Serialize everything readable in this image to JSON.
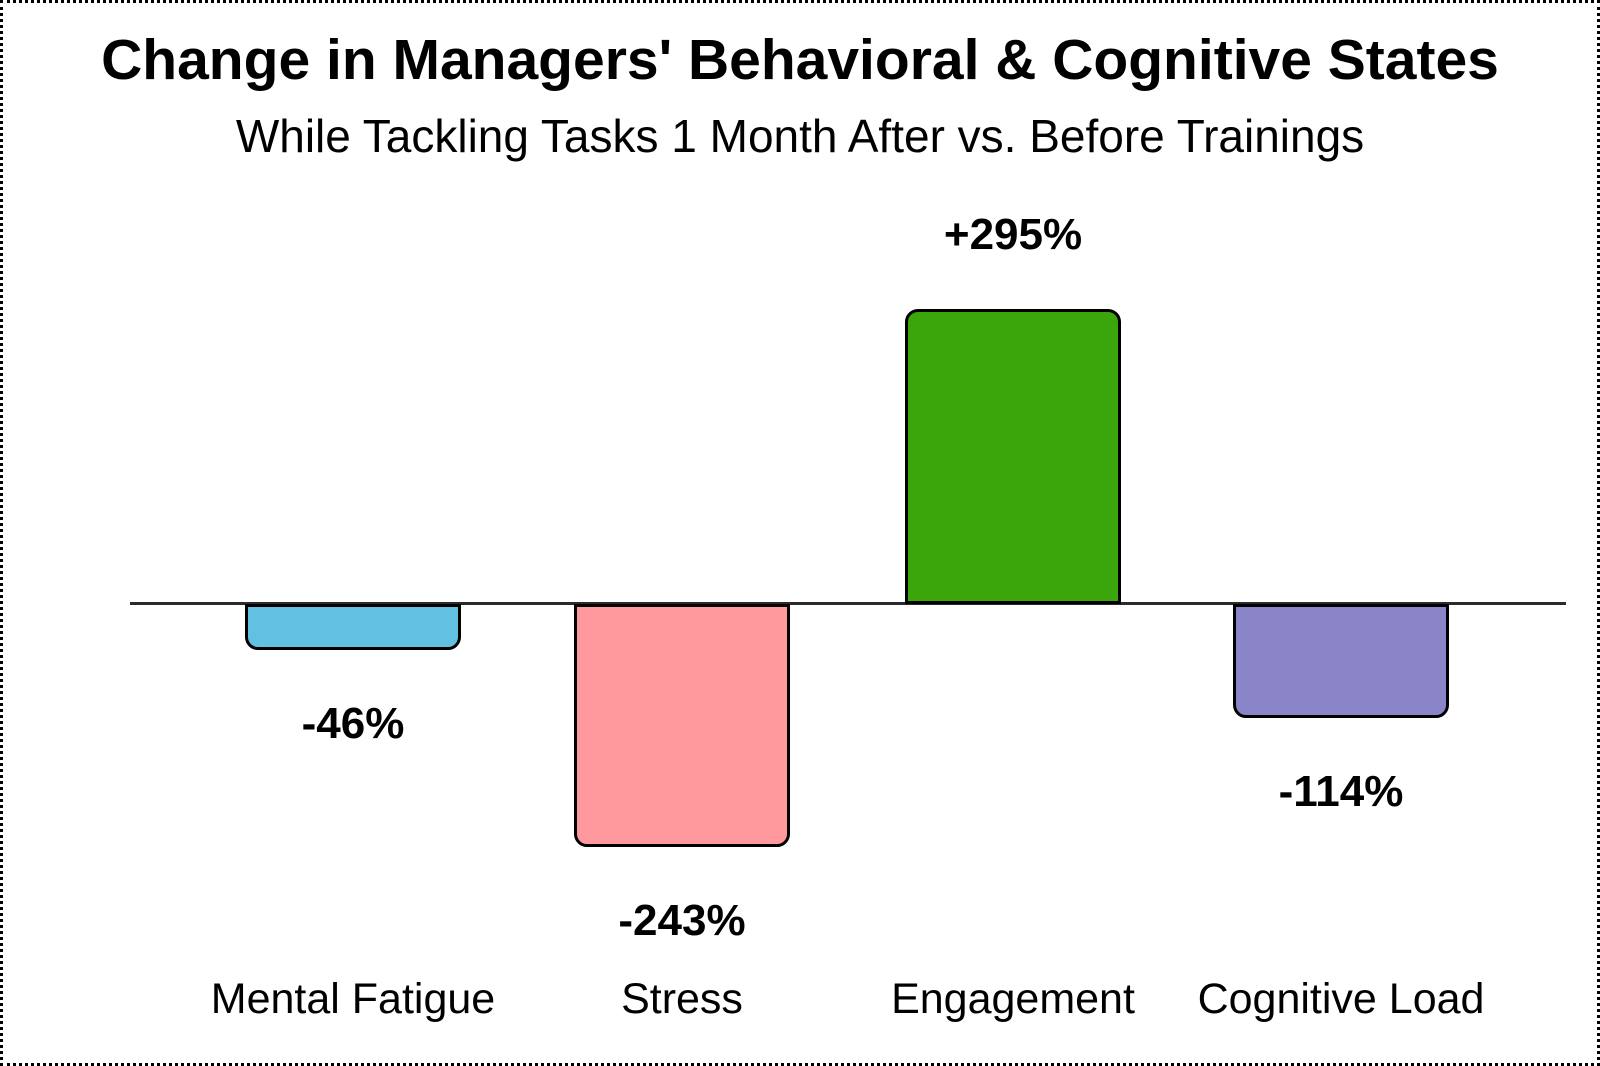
{
  "chart_data": {
    "type": "bar",
    "title": "Change in Managers' Behavioral & Cognitive States",
    "subtitle": "While Tackling Tasks 1 Month After vs. Before Trainings",
    "categories": [
      "Mental Fatigue",
      "Stress",
      "Engagement",
      "Cognitive Load"
    ],
    "values": [
      -46,
      -243,
      295,
      -114
    ],
    "value_labels": [
      "-46%",
      "-243%",
      "+295%",
      "-114%"
    ],
    "bar_colors": [
      "#62C0E0",
      "#FF999D",
      "#3AA60B",
      "#8A84C8"
    ],
    "bar_border_color": "#000000",
    "axis_color": "#2B2B2B",
    "background_color": "#FFFFFF",
    "baseline": 0,
    "ylim": [
      -300,
      350
    ],
    "grid": false,
    "legend": false,
    "unit": "%"
  }
}
